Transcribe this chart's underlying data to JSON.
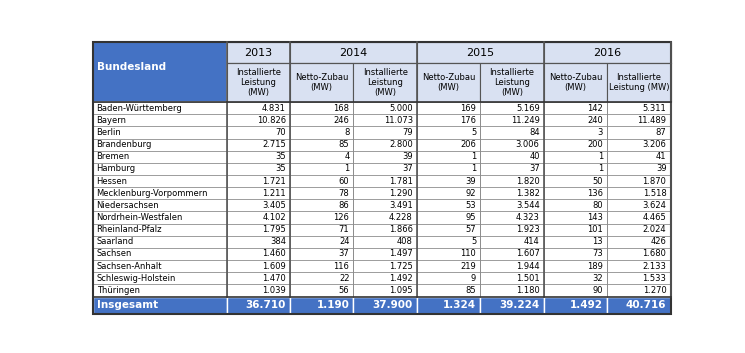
{
  "bundeslaender": [
    "Baden-Württemberg",
    "Bayern",
    "Berlin",
    "Brandenburg",
    "Bremen",
    "Hamburg",
    "Hessen",
    "Mecklenburg-Vorpommern",
    "Niedersachsen",
    "Nordrhein-Westfalen",
    "Rheinland-Pfalz",
    "Saarland",
    "Sachsen",
    "Sachsen-Anhalt",
    "Schleswig-Holstein",
    "Thüringen"
  ],
  "data": [
    [
      4831,
      168,
      5000,
      169,
      5169,
      142,
      5311
    ],
    [
      10826,
      246,
      11073,
      176,
      11249,
      240,
      11489
    ],
    [
      70,
      8,
      79,
      5,
      84,
      3,
      87
    ],
    [
      2715,
      85,
      2800,
      206,
      3006,
      200,
      3206
    ],
    [
      35,
      4,
      39,
      1,
      40,
      1,
      41
    ],
    [
      35,
      1,
      37,
      1,
      37,
      1,
      39
    ],
    [
      1721,
      60,
      1781,
      39,
      1820,
      50,
      1870
    ],
    [
      1211,
      78,
      1290,
      92,
      1382,
      136,
      1518
    ],
    [
      3405,
      86,
      3491,
      53,
      3544,
      80,
      3624
    ],
    [
      4102,
      126,
      4228,
      95,
      4323,
      143,
      4465
    ],
    [
      1795,
      71,
      1866,
      57,
      1923,
      101,
      2024
    ],
    [
      384,
      24,
      408,
      5,
      414,
      13,
      426
    ],
    [
      1460,
      37,
      1497,
      110,
      1607,
      73,
      1680
    ],
    [
      1609,
      116,
      1725,
      219,
      1944,
      189,
      2133
    ],
    [
      1470,
      22,
      1492,
      9,
      1501,
      32,
      1533
    ],
    [
      1039,
      56,
      1095,
      85,
      1180,
      90,
      1270
    ]
  ],
  "totals": [
    36710,
    1190,
    37900,
    1324,
    39224,
    1492,
    40716
  ],
  "bundesland_label": "Bundesland",
  "insgesamt_label": "Insgesamt",
  "header_bg_dark": "#4472C4",
  "header_bg_light": "#D9E1F2",
  "total_row_bg": "#4472C4",
  "cell_bg": "#FFFFFF",
  "border_thin": "#000000",
  "border_thick": "#000000",
  "fig_bg": "#FFFFFF",
  "col_headers_row2": [
    "Installierte\nLeistung\n(MW)",
    "Netto-Zubau\n(MW)",
    "Installierte\nLeistung\n(MW)",
    "Netto-Zubau\n(MW)",
    "Installierte\nLeistung\n(MW)",
    "Netto-Zubau\n(MW)",
    "Installierte\nLeistung (MW)"
  ]
}
